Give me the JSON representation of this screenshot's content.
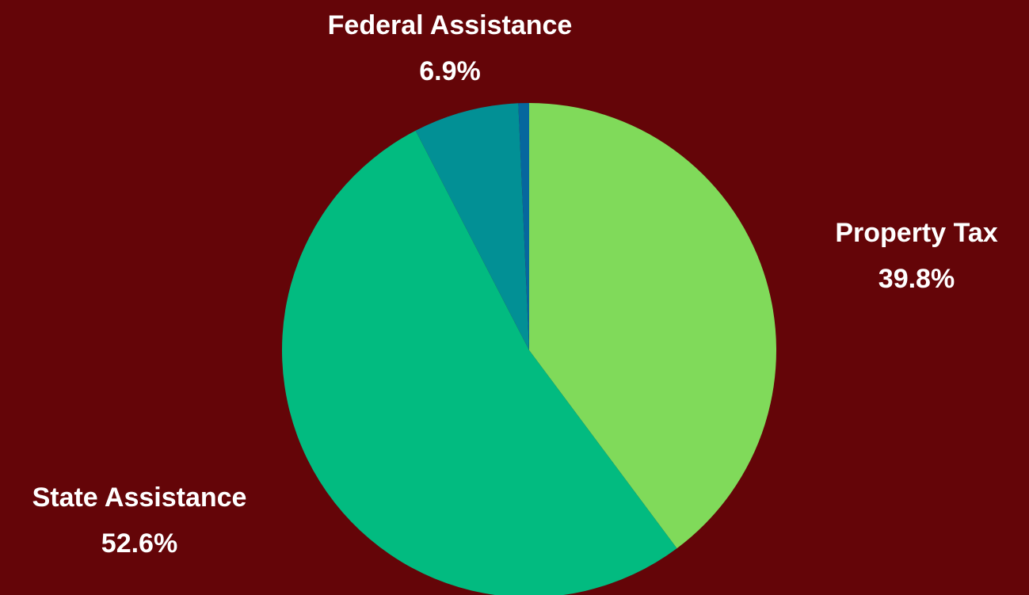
{
  "chart_data": {
    "type": "pie",
    "title": "",
    "start_angle_deg": 0,
    "direction": "clockwise",
    "slices": [
      {
        "label": "Property Tax",
        "value": 39.8,
        "display": "39.8%",
        "color": "#80da5a",
        "labeled": true
      },
      {
        "label": "State Assistance",
        "value": 52.6,
        "display": "52.6%",
        "color": "#02bb80",
        "labeled": true
      },
      {
        "label": "Federal Assistance",
        "value": 6.9,
        "display": "6.9%",
        "color": "#029095",
        "labeled": true
      },
      {
        "label": "",
        "value": 0.7,
        "display": "",
        "color": "#06679e",
        "labeled": false
      }
    ]
  },
  "background_color": "#640508"
}
